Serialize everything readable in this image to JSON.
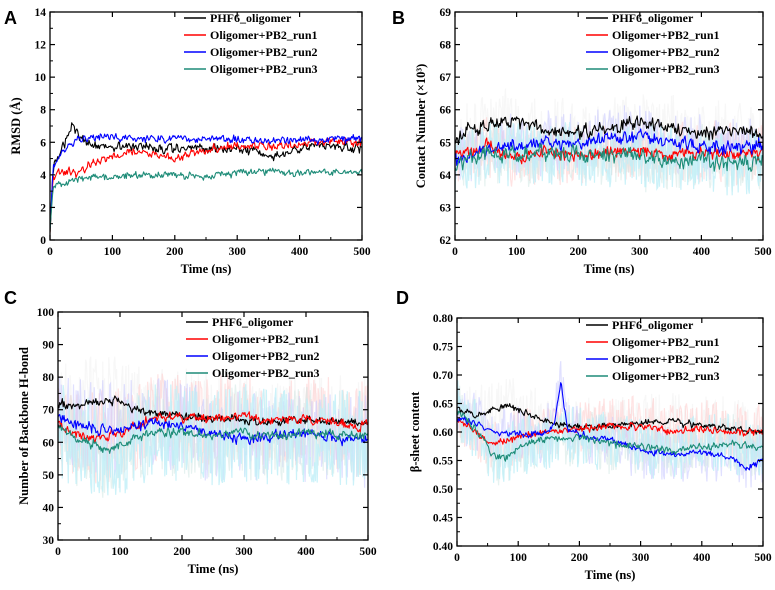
{
  "figure": {
    "colors": {
      "black": "#000000",
      "red": "#ff0000",
      "blue": "#0000ff",
      "teal": "#1e8c78"
    }
  },
  "chart_data": [
    {
      "id": "A",
      "letter": "A",
      "type": "line",
      "xlabel": "Time (ns)",
      "ylabel": "RMSD (Å)",
      "xlim": [
        0,
        500
      ],
      "ylim": [
        0,
        14
      ],
      "xticks": [
        0,
        100,
        200,
        300,
        400,
        500
      ],
      "yticks": [
        0,
        2,
        4,
        6,
        8,
        10,
        12,
        14
      ],
      "ytick_labels": [
        "0",
        "2",
        "4",
        "6",
        "8",
        "10",
        "12",
        "14"
      ],
      "shaded_band": false,
      "series": [
        {
          "name": "PHF6_oligomer",
          "color": "#000000",
          "x": [
            0,
            5,
            15,
            25,
            35,
            45,
            60,
            80,
            100,
            150,
            200,
            250,
            300,
            340,
            360,
            400,
            450,
            500
          ],
          "values": [
            0.5,
            4.5,
            5.2,
            6.0,
            7.3,
            6.4,
            6.0,
            5.7,
            5.8,
            5.7,
            5.6,
            5.6,
            5.6,
            5.3,
            5.1,
            5.7,
            5.9,
            5.6
          ],
          "noise": 0.35
        },
        {
          "name": "Oligomer+PB2_run1",
          "color": "#ff0000",
          "x": [
            0,
            5,
            20,
            40,
            60,
            80,
            100,
            150,
            200,
            220,
            260,
            300,
            350,
            400,
            450,
            500
          ],
          "values": [
            0.5,
            3.9,
            4.3,
            4.0,
            4.5,
            4.8,
            5.2,
            5.4,
            5.0,
            5.2,
            5.6,
            5.8,
            5.7,
            5.9,
            6.1,
            6.0
          ],
          "noise": 0.3
        },
        {
          "name": "Oligomer+PB2_run2",
          "color": "#0000ff",
          "x": [
            0,
            5,
            15,
            30,
            50,
            80,
            100,
            200,
            300,
            400,
            450,
            500
          ],
          "values": [
            0.5,
            4.4,
            5.2,
            5.8,
            6.2,
            6.3,
            6.3,
            6.2,
            6.2,
            6.1,
            6.2,
            6.2
          ],
          "noise": 0.3
        },
        {
          "name": "Oligomer+PB2_run3",
          "color": "#1e8c78",
          "x": [
            0,
            5,
            30,
            60,
            100,
            150,
            200,
            250,
            300,
            350,
            400,
            450,
            500
          ],
          "values": [
            0.5,
            3.3,
            3.6,
            3.8,
            3.9,
            4.0,
            4.0,
            3.9,
            4.1,
            4.2,
            4.1,
            4.2,
            4.2
          ],
          "noise": 0.25
        }
      ]
    },
    {
      "id": "B",
      "letter": "B",
      "type": "line",
      "xlabel": "Time (ns)",
      "ylabel": "Contact Number (×10³)",
      "xlim": [
        0,
        500
      ],
      "ylim": [
        62,
        69
      ],
      "xticks": [
        0,
        100,
        200,
        300,
        400,
        500
      ],
      "yticks": [
        62,
        63,
        64,
        65,
        66,
        67,
        68,
        69
      ],
      "ytick_labels": [
        "62",
        "63",
        "64",
        "65",
        "66",
        "67",
        "68",
        "69"
      ],
      "shaded_band": true,
      "band_width": 0.9,
      "series": [
        {
          "name": "PHF6_oligomer",
          "color": "#000000",
          "x": [
            0,
            20,
            50,
            80,
            100,
            150,
            200,
            250,
            300,
            350,
            400,
            450,
            500
          ],
          "values": [
            65.0,
            65.4,
            65.5,
            65.7,
            65.6,
            65.3,
            65.3,
            65.5,
            65.6,
            65.4,
            65.3,
            65.4,
            65.3
          ],
          "noise": 0.25
        },
        {
          "name": "Oligomer+PB2_run1",
          "color": "#ff0000",
          "x": [
            0,
            50,
            100,
            150,
            200,
            250,
            300,
            350,
            400,
            450,
            500
          ],
          "values": [
            64.6,
            64.9,
            64.5,
            64.7,
            64.6,
            64.7,
            64.7,
            64.6,
            64.7,
            64.6,
            64.7
          ],
          "noise": 0.25
        },
        {
          "name": "Oligomer+PB2_run2",
          "color": "#0000ff",
          "x": [
            0,
            50,
            100,
            150,
            200,
            250,
            300,
            350,
            400,
            450,
            500
          ],
          "values": [
            64.4,
            64.8,
            64.9,
            65.0,
            64.9,
            65.1,
            65.2,
            65.0,
            64.9,
            64.8,
            64.9
          ],
          "noise": 0.25
        },
        {
          "name": "Oligomer+PB2_run3",
          "color": "#1e8c78",
          "x": [
            0,
            50,
            100,
            150,
            200,
            250,
            300,
            350,
            400,
            450,
            500
          ],
          "values": [
            64.2,
            64.7,
            64.6,
            64.7,
            64.6,
            64.6,
            64.6,
            64.5,
            64.5,
            64.3,
            64.5
          ],
          "noise": 0.3
        }
      ]
    },
    {
      "id": "C",
      "letter": "C",
      "type": "line",
      "xlabel": "Time (ns)",
      "ylabel": "Number of Backbone H-bond",
      "xlim": [
        0,
        500
      ],
      "ylim": [
        30,
        100
      ],
      "xticks": [
        0,
        100,
        200,
        300,
        400,
        500
      ],
      "yticks": [
        30,
        40,
        50,
        60,
        70,
        80,
        90,
        100
      ],
      "ytick_labels": [
        "30",
        "40",
        "50",
        "60",
        "70",
        "80",
        "90",
        "100"
      ],
      "shaded_band": true,
      "band_width": 14,
      "series": [
        {
          "name": "PHF6_oligomer",
          "color": "#000000",
          "x": [
            0,
            20,
            50,
            80,
            100,
            120,
            150,
            200,
            250,
            300,
            350,
            400,
            450,
            500
          ],
          "values": [
            72,
            71,
            72,
            73,
            73,
            70,
            69,
            68,
            67,
            67,
            66,
            67,
            66,
            66
          ],
          "noise": 1.6
        },
        {
          "name": "Oligomer+PB2_run1",
          "color": "#ff0000",
          "x": [
            0,
            20,
            50,
            80,
            100,
            150,
            200,
            250,
            300,
            350,
            400,
            450,
            500
          ],
          "values": [
            66,
            63,
            61,
            62,
            63,
            67,
            68,
            67,
            68,
            67,
            67,
            66,
            65
          ],
          "noise": 1.8
        },
        {
          "name": "Oligomer+PB2_run2",
          "color": "#0000ff",
          "x": [
            0,
            30,
            60,
            100,
            150,
            200,
            250,
            300,
            350,
            400,
            450,
            500
          ],
          "values": [
            68,
            65,
            64,
            64,
            66,
            65,
            63,
            61,
            62,
            63,
            61,
            61
          ],
          "noise": 2.0
        },
        {
          "name": "Oligomer+PB2_run3",
          "color": "#1e8c78",
          "x": [
            0,
            30,
            60,
            80,
            100,
            150,
            200,
            250,
            300,
            350,
            400,
            450,
            500
          ],
          "values": [
            65,
            61,
            59,
            57,
            59,
            63,
            63,
            62,
            63,
            62,
            63,
            62,
            62
          ],
          "noise": 1.8
        }
      ]
    },
    {
      "id": "D",
      "letter": "D",
      "type": "line",
      "xlabel": "Time (ns)",
      "ylabel": "β-sheet content",
      "xlim": [
        0,
        500
      ],
      "ylim": [
        0.4,
        0.8
      ],
      "xticks": [
        0,
        100,
        200,
        300,
        400,
        500
      ],
      "yticks": [
        0.4,
        0.45,
        0.5,
        0.55,
        0.6,
        0.65,
        0.7,
        0.75,
        0.8
      ],
      "ytick_labels": [
        "0.40",
        "0.45",
        "0.50",
        "0.55",
        "0.60",
        "0.65",
        "0.70",
        "0.75",
        "0.80"
      ],
      "shaded_band": true,
      "band_width": 0.05,
      "series": [
        {
          "name": "PHF6_oligomer",
          "color": "#000000",
          "x": [
            0,
            30,
            60,
            90,
            120,
            150,
            200,
            250,
            300,
            350,
            400,
            450,
            500
          ],
          "values": [
            0.64,
            0.63,
            0.64,
            0.645,
            0.63,
            0.615,
            0.61,
            0.61,
            0.615,
            0.62,
            0.61,
            0.605,
            0.6
          ],
          "noise": 0.007
        },
        {
          "name": "Oligomer+PB2_run1",
          "color": "#ff0000",
          "x": [
            0,
            30,
            50,
            80,
            100,
            150,
            200,
            250,
            300,
            350,
            400,
            450,
            500
          ],
          "values": [
            0.625,
            0.6,
            0.58,
            0.585,
            0.59,
            0.6,
            0.605,
            0.61,
            0.61,
            0.6,
            0.605,
            0.6,
            0.6
          ],
          "noise": 0.008
        },
        {
          "name": "Oligomer+PB2_run2",
          "color": "#0000ff",
          "x": [
            0,
            30,
            60,
            100,
            150,
            160,
            170,
            180,
            200,
            250,
            300,
            350,
            400,
            450,
            470,
            500
          ],
          "values": [
            0.625,
            0.615,
            0.6,
            0.595,
            0.6,
            0.62,
            0.69,
            0.605,
            0.595,
            0.585,
            0.57,
            0.56,
            0.565,
            0.555,
            0.535,
            0.55
          ],
          "noise": 0.007
        },
        {
          "name": "Oligomer+PB2_run3",
          "color": "#1e8c78",
          "x": [
            0,
            30,
            60,
            80,
            100,
            150,
            200,
            250,
            300,
            350,
            400,
            450,
            500
          ],
          "values": [
            0.64,
            0.605,
            0.56,
            0.555,
            0.575,
            0.59,
            0.59,
            0.58,
            0.575,
            0.565,
            0.575,
            0.58,
            0.57
          ],
          "noise": 0.008
        }
      ]
    }
  ]
}
